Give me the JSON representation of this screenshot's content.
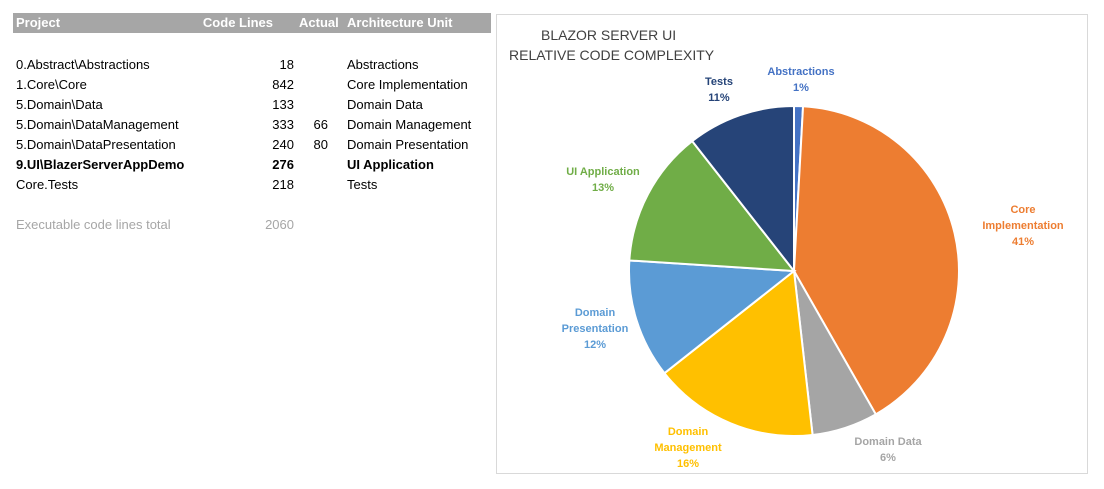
{
  "table": {
    "headers": {
      "project": "Project",
      "code_lines": "Code Lines",
      "actual": "Actual",
      "architecture_unit": "Architecture Unit"
    },
    "rows": [
      {
        "project": "0.Abstract\\Abstractions",
        "code_lines": "18",
        "actual": "",
        "architecture_unit": "Abstractions",
        "bold": false
      },
      {
        "project": "1.Core\\Core",
        "code_lines": "842",
        "actual": "",
        "architecture_unit": "Core Implementation",
        "bold": false
      },
      {
        "project": "5.Domain\\Data",
        "code_lines": "133",
        "actual": "",
        "architecture_unit": "Domain Data",
        "bold": false
      },
      {
        "project": "5.Domain\\DataManagement",
        "code_lines": "333",
        "actual": "66",
        "architecture_unit": "Domain Management",
        "bold": false
      },
      {
        "project": "5.Domain\\DataPresentation",
        "code_lines": "240",
        "actual": "80",
        "architecture_unit": "Domain Presentation",
        "bold": false
      },
      {
        "project": "9.UI\\BlazerServerAppDemo",
        "code_lines": "276",
        "actual": "",
        "architecture_unit": "UI Application",
        "bold": true
      },
      {
        "project": "Core.Tests",
        "code_lines": "218",
        "actual": "",
        "architecture_unit": "Tests",
        "bold": false
      }
    ],
    "total": {
      "label": "Executable code lines total",
      "value": "2060"
    }
  },
  "chart_data": {
    "type": "pie",
    "title": [
      "BLAZOR SERVER UI",
      "RELATIVE CODE COMPLEXITY"
    ],
    "slices": [
      {
        "name": "Abstractions",
        "value": 18,
        "percent": "1%",
        "color": "#4472c4",
        "label_lines": [
          "Abstractions"
        ]
      },
      {
        "name": "Core Implementation",
        "value": 842,
        "percent": "41%",
        "color": "#ed7d31",
        "label_lines": [
          "Core",
          "Implementation"
        ]
      },
      {
        "name": "Domain Data",
        "value": 133,
        "percent": "6%",
        "color": "#a5a5a5",
        "label_lines": [
          "Domain Data"
        ]
      },
      {
        "name": "Domain Management",
        "value": 333,
        "percent": "16%",
        "color": "#ffc000",
        "label_lines": [
          "Domain",
          "Management"
        ]
      },
      {
        "name": "Domain Presentation",
        "value": 240,
        "percent": "12%",
        "color": "#5b9bd5",
        "label_lines": [
          "Domain",
          "Presentation"
        ]
      },
      {
        "name": "UI Application",
        "value": 276,
        "percent": "13%",
        "color": "#70ad47",
        "label_lines": [
          "UI Application"
        ]
      },
      {
        "name": "Tests",
        "value": 218,
        "percent": "11%",
        "color": "#264478",
        "label_lines": [
          "Tests"
        ]
      }
    ],
    "legend": "none",
    "start_angle_deg": 0,
    "direction": "clockwise"
  }
}
